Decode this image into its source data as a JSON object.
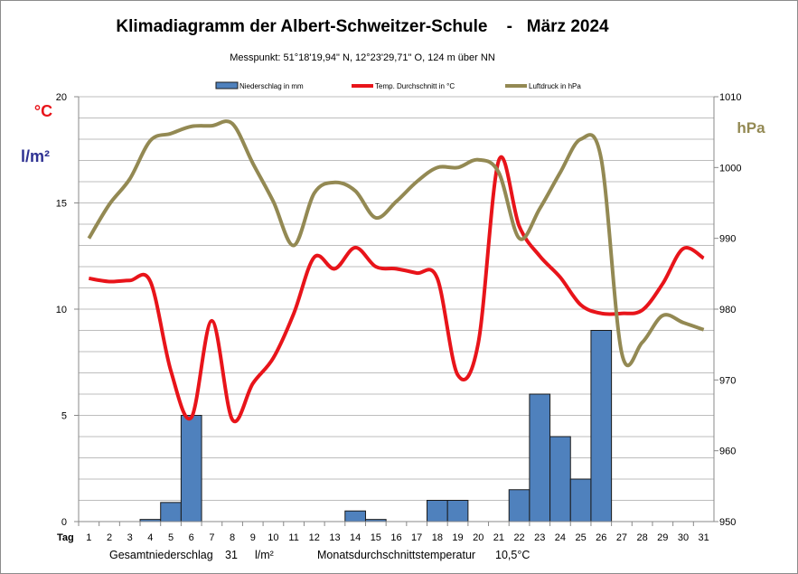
{
  "chart_data": {
    "type": "bar+line",
    "title": "Klimadiagramm der Albert-Schweitzer-Schule    -   März 2024",
    "subtitle": "Messpunkt:  51°18'19,94\" N,  12°23'29,71\" O,  124 m über NN",
    "left_axis_labels": [
      "°C",
      "l/m²"
    ],
    "right_axis_label": "hPa",
    "x_label": "Tag",
    "categories": [
      1,
      2,
      3,
      4,
      5,
      6,
      7,
      8,
      9,
      10,
      11,
      12,
      13,
      14,
      15,
      16,
      17,
      18,
      19,
      20,
      21,
      22,
      23,
      24,
      25,
      26,
      27,
      28,
      29,
      30,
      31
    ],
    "ylim_left": [
      0,
      20
    ],
    "yticks_left": [
      0,
      5,
      10,
      15,
      20
    ],
    "ylim_right": [
      950,
      1010
    ],
    "yticks_right": [
      950,
      960,
      970,
      980,
      990,
      1000,
      1010
    ],
    "grid": "horizontal every 1 unit",
    "legend_position": "top",
    "series": [
      {
        "name": "Niederschlag in mm",
        "type": "bar",
        "axis": "left",
        "color": "#4f81bd",
        "values": [
          0,
          0,
          0,
          0.1,
          0.9,
          5,
          0,
          0,
          0,
          0,
          0,
          0,
          0,
          0.5,
          0.1,
          0,
          0,
          1,
          1,
          0,
          0,
          1.5,
          6,
          4,
          2,
          9,
          0,
          0,
          0,
          0,
          0
        ]
      },
      {
        "name": "Temp. Durchschnitt in °C",
        "type": "line",
        "axis": "left",
        "color": "#e8141a",
        "values": [
          11.45,
          11.3,
          11.35,
          11.3,
          7.1,
          4.9,
          9.45,
          4.8,
          6.5,
          7.7,
          9.8,
          12.45,
          11.9,
          12.9,
          12.0,
          11.9,
          11.7,
          11.45,
          6.9,
          8.4,
          17.0,
          13.9,
          12.5,
          11.5,
          10.2,
          9.8,
          9.8,
          9.95,
          11.2,
          12.85,
          12.4
        ]
      },
      {
        "name": "Luftdruck in hPa",
        "type": "line",
        "axis": "right",
        "color": "#938953",
        "values": [
          990,
          994.8,
          998.4,
          1003.8,
          1004.8,
          1005.8,
          1005.9,
          1006.2,
          1000.6,
          995.2,
          989,
          996.4,
          997.9,
          996.7,
          992.9,
          995.2,
          998,
          1000,
          1000,
          1001.1,
          999.3,
          990,
          994.2,
          999.3,
          1004,
          1001.2,
          973.8,
          975.3,
          979.1,
          978.1,
          977.1
        ]
      }
    ],
    "footer": {
      "total_label": "Gesamtniederschlag",
      "total_value": "31",
      "total_unit": "l/m²",
      "avg_label": "Monatsdurchschnittstemperatur",
      "avg_value": "10,5°C"
    }
  }
}
